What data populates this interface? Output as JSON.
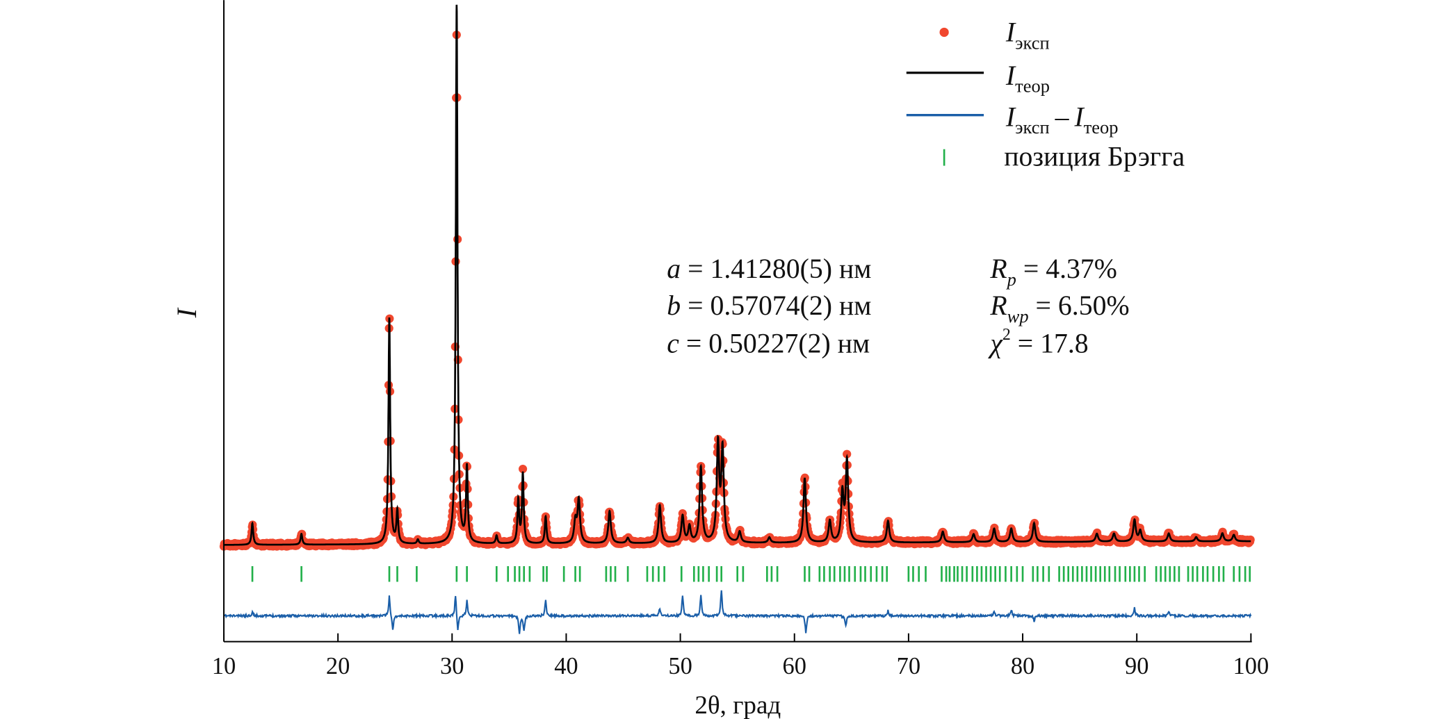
{
  "chart_data": {
    "type": "line",
    "xlabel": "2θ, град",
    "ylabel": "I",
    "xlim": [
      10,
      100
    ],
    "xticks": [
      10,
      20,
      30,
      40,
      50,
      60,
      70,
      80,
      90,
      100
    ],
    "grid": false,
    "legend_position": "top-right",
    "colors": {
      "observed": "#f0472e",
      "calculated": "#000000",
      "difference": "#1a5ea8",
      "bragg": "#22b04a"
    },
    "legend": [
      {
        "symbol": "dot",
        "main": "I",
        "sub": "эксп"
      },
      {
        "symbol": "line-black",
        "main": "I",
        "sub": "теор"
      },
      {
        "symbol": "line-blue",
        "main": "I",
        "sub": "эксп",
        "minus": "–",
        "main2": "I",
        "sub2": "теор"
      },
      {
        "symbol": "tick-green",
        "label": "позиция Брэгга"
      }
    ],
    "annotations": {
      "cell": [
        {
          "var": "a",
          "text": " = 1.41280(5) нм"
        },
        {
          "var": "b",
          "text": " = 0.57074(2) нм"
        },
        {
          "var": "c",
          "text": " = 0.50227(2) нм"
        }
      ],
      "fit": [
        {
          "var": "R",
          "sub": "p",
          "text": " = 4.37%"
        },
        {
          "var": "R",
          "sub": "wp",
          "text": " = 6.50%"
        },
        {
          "var": "χ",
          "sup": "2",
          "text": " = 17.8"
        }
      ]
    },
    "peaks_relative_intensity": [
      [
        12.5,
        4
      ],
      [
        16.8,
        2
      ],
      [
        24.5,
        42
      ],
      [
        25.2,
        6
      ],
      [
        27.0,
        0.8
      ],
      [
        30.4,
        100
      ],
      [
        31.3,
        14
      ],
      [
        33.9,
        1.5
      ],
      [
        35.8,
        8
      ],
      [
        36.2,
        13
      ],
      [
        38.2,
        5
      ],
      [
        40.8,
        4
      ],
      [
        41.1,
        8
      ],
      [
        43.8,
        6
      ],
      [
        45.4,
        1
      ],
      [
        48.2,
        7
      ],
      [
        50.2,
        5
      ],
      [
        50.8,
        3
      ],
      [
        51.8,
        14
      ],
      [
        53.3,
        18
      ],
      [
        53.7,
        17
      ],
      [
        55.2,
        2
      ],
      [
        57.8,
        1
      ],
      [
        60.9,
        12
      ],
      [
        63.1,
        4
      ],
      [
        64.2,
        9
      ],
      [
        64.6,
        15
      ],
      [
        68.2,
        4
      ],
      [
        73.0,
        2
      ],
      [
        75.7,
        1.5
      ],
      [
        77.5,
        2.5
      ],
      [
        79.0,
        2.5
      ],
      [
        81.0,
        3.5
      ],
      [
        86.5,
        1.5
      ],
      [
        88.0,
        1.5
      ],
      [
        89.8,
        4
      ],
      [
        90.3,
        2
      ],
      [
        92.8,
        1.5
      ],
      [
        95.2,
        0.8
      ],
      [
        97.5,
        1.5
      ],
      [
        98.5,
        1.2
      ]
    ],
    "bragg_positions": [
      12.5,
      16.8,
      24.5,
      25.2,
      26.9,
      30.4,
      31.3,
      33.9,
      34.9,
      35.5,
      35.9,
      36.3,
      36.8,
      38.0,
      38.3,
      39.8,
      40.8,
      41.2,
      43.5,
      43.9,
      44.3,
      45.4,
      47.1,
      47.6,
      48.1,
      48.6,
      50.1,
      51.2,
      51.6,
      52.0,
      52.5,
      53.2,
      53.6,
      55.0,
      55.5,
      57.6,
      58.0,
      58.5,
      60.9,
      61.3,
      62.2,
      62.6,
      63.1,
      63.5,
      64.0,
      64.4,
      64.8,
      65.3,
      65.8,
      66.2,
      66.7,
      67.2,
      67.7,
      68.1,
      70.0,
      70.4,
      70.9,
      71.5,
      72.9,
      73.3,
      73.6,
      74.0,
      74.3,
      74.7,
      75.1,
      75.6,
      76.0,
      76.4,
      76.8,
      77.2,
      77.6,
      78.0,
      78.5,
      79.0,
      79.5,
      80.0,
      80.9,
      81.3,
      81.8,
      82.3,
      83.2,
      83.6,
      84.0,
      84.4,
      84.8,
      85.2,
      85.6,
      86.0,
      86.4,
      86.8,
      87.2,
      87.6,
      88.1,
      88.5,
      89.0,
      89.4,
      89.8,
      90.2,
      90.7,
      91.7,
      92.1,
      92.5,
      92.9,
      93.3,
      93.7,
      94.5,
      94.9,
      95.3,
      95.8,
      96.2,
      96.7,
      97.2,
      97.6,
      98.5,
      99.0,
      99.5,
      99.9
    ],
    "difference_spikes": [
      [
        12.5,
        0.8
      ],
      [
        24.5,
        4
      ],
      [
        24.8,
        -3
      ],
      [
        30.3,
        4.5
      ],
      [
        30.5,
        -3.5
      ],
      [
        31.3,
        3
      ],
      [
        35.9,
        -3.5
      ],
      [
        36.3,
        -3
      ],
      [
        38.2,
        3
      ],
      [
        48.2,
        1.5
      ],
      [
        50.2,
        4
      ],
      [
        51.8,
        4
      ],
      [
        53.6,
        5
      ],
      [
        61.0,
        -3.5
      ],
      [
        64.5,
        -2
      ],
      [
        68.2,
        1
      ],
      [
        77.5,
        1
      ],
      [
        79.0,
        1.2
      ],
      [
        81.0,
        -1
      ],
      [
        89.8,
        1.5
      ],
      [
        92.8,
        0.8
      ]
    ]
  }
}
